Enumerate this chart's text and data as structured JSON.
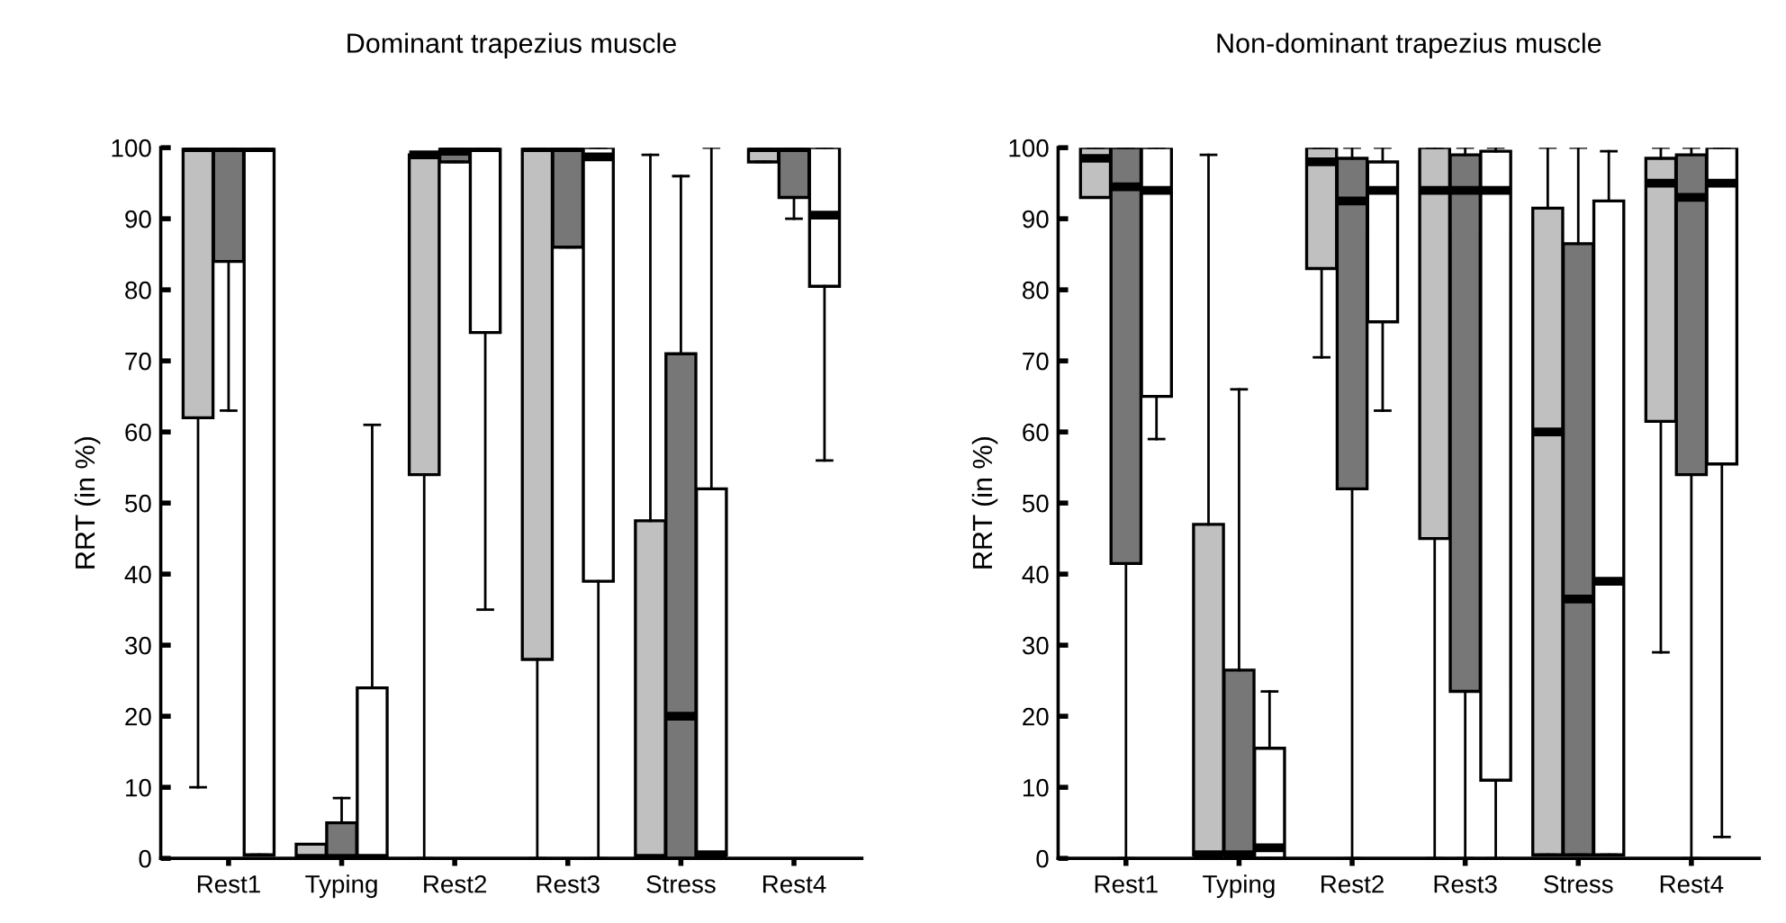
{
  "chart_data": [
    {
      "type": "box",
      "title": "Dominant trapezius muscle",
      "ylabel": "RRT (in %)",
      "categories": [
        "Rest1",
        "Typing",
        "Rest2",
        "Rest3",
        "Stress",
        "Rest4"
      ],
      "ylim": [
        0,
        100
      ],
      "yticks": [
        0,
        10,
        20,
        30,
        40,
        50,
        60,
        70,
        80,
        90,
        100
      ],
      "grid": false,
      "legend": false,
      "series": [
        {
          "color": "#c0c0c0",
          "boxes": [
            {
              "low": 10,
              "q1": 62,
              "median": 100,
              "q3": 100,
              "high": 100
            },
            {
              "low": 0,
              "q1": 0,
              "median": 0,
              "q3": 2,
              "high": 2
            },
            {
              "low": 0,
              "q1": 54,
              "median": 99,
              "q3": 99,
              "high": 99
            },
            {
              "low": 0,
              "q1": 28,
              "median": 100,
              "q3": 100,
              "high": 100
            },
            {
              "low": 0,
              "q1": 0,
              "median": 0,
              "q3": 47.5,
              "high": 99
            },
            {
              "low": 98,
              "q1": 98,
              "median": 100,
              "q3": 100,
              "high": 100
            }
          ]
        },
        {
          "color": "#777777",
          "boxes": [
            {
              "low": 63,
              "q1": 84,
              "median": 100,
              "q3": 100,
              "high": 100
            },
            {
              "low": 0,
              "q1": 0,
              "median": 0,
              "q3": 5,
              "high": 8.5
            },
            {
              "low": 98,
              "q1": 98,
              "median": 99.5,
              "q3": 100,
              "high": 100
            },
            {
              "low": 86,
              "q1": 86,
              "median": 100,
              "q3": 100,
              "high": 100
            },
            {
              "low": 0,
              "q1": 0,
              "median": 20,
              "q3": 71,
              "high": 96
            },
            {
              "low": 90,
              "q1": 93,
              "median": 100,
              "q3": 100,
              "high": 100
            }
          ]
        },
        {
          "color": "#ffffff",
          "boxes": [
            {
              "low": 0.5,
              "q1": 0.5,
              "median": 100,
              "q3": 100,
              "high": 100
            },
            {
              "low": 0,
              "q1": 0,
              "median": 0,
              "q3": 24,
              "high": 61
            },
            {
              "low": 35,
              "q1": 74,
              "median": 100,
              "q3": 100,
              "high": 100
            },
            {
              "low": 0,
              "q1": 39,
              "median": 98.7,
              "q3": 100,
              "high": 100
            },
            {
              "low": 0,
              "q1": 0.5,
              "median": 0.5,
              "q3": 52,
              "high": 100
            },
            {
              "low": 56,
              "q1": 80.5,
              "median": 90.5,
              "q3": 100,
              "high": 100
            }
          ]
        }
      ]
    },
    {
      "type": "box",
      "title": "Non-dominant trapezius muscle",
      "ylabel": "RRT (in %)",
      "categories": [
        "Rest1",
        "Typing",
        "Rest2",
        "Rest3",
        "Stress",
        "Rest4"
      ],
      "ylim": [
        0,
        100
      ],
      "yticks": [
        0,
        10,
        20,
        30,
        40,
        50,
        60,
        70,
        80,
        90,
        100
      ],
      "grid": false,
      "legend": false,
      "series": [
        {
          "color": "#c0c0c0",
          "boxes": [
            {
              "low": 93,
              "q1": 93,
              "median": 98.5,
              "q3": 100,
              "high": 100
            },
            {
              "low": 0,
              "q1": 0.5,
              "median": 0.5,
              "q3": 47,
              "high": 99
            },
            {
              "low": 70.5,
              "q1": 83,
              "median": 98,
              "q3": 100,
              "high": 100
            },
            {
              "low": 0,
              "q1": 45,
              "median": 94,
              "q3": 100,
              "high": 100
            },
            {
              "low": 0.5,
              "q1": 0.5,
              "median": 60,
              "q3": 91.5,
              "high": 100
            },
            {
              "low": 29,
              "q1": 61.5,
              "median": 95,
              "q3": 98.5,
              "high": 100
            }
          ]
        },
        {
          "color": "#777777",
          "boxes": [
            {
              "low": 0,
              "q1": 41.5,
              "median": 94.5,
              "q3": 100,
              "high": 100
            },
            {
              "low": 0,
              "q1": 0.5,
              "median": 0.5,
              "q3": 26.5,
              "high": 66
            },
            {
              "low": 0,
              "q1": 52,
              "median": 92.5,
              "q3": 98.5,
              "high": 100
            },
            {
              "low": 0,
              "q1": 23.5,
              "median": 94,
              "q3": 99,
              "high": 100
            },
            {
              "low": 0.5,
              "q1": 0.5,
              "median": 36.5,
              "q3": 86.5,
              "high": 100
            },
            {
              "low": 0,
              "q1": 54,
              "median": 93,
              "q3": 99,
              "high": 100
            }
          ]
        },
        {
          "color": "#ffffff",
          "boxes": [
            {
              "low": 59,
              "q1": 65,
              "median": 94,
              "q3": 100,
              "high": 100
            },
            {
              "low": 0,
              "q1": 0,
              "median": 1.5,
              "q3": 15.5,
              "high": 23.5
            },
            {
              "low": 63,
              "q1": 75.5,
              "median": 94,
              "q3": 98,
              "high": 100
            },
            {
              "low": 0,
              "q1": 11,
              "median": 94,
              "q3": 99.5,
              "high": 100
            },
            {
              "low": 0.5,
              "q1": 0.5,
              "median": 39,
              "q3": 92.5,
              "high": 99.5
            },
            {
              "low": 3,
              "q1": 55.5,
              "median": 95,
              "q3": 100,
              "high": 100
            }
          ]
        }
      ]
    }
  ]
}
